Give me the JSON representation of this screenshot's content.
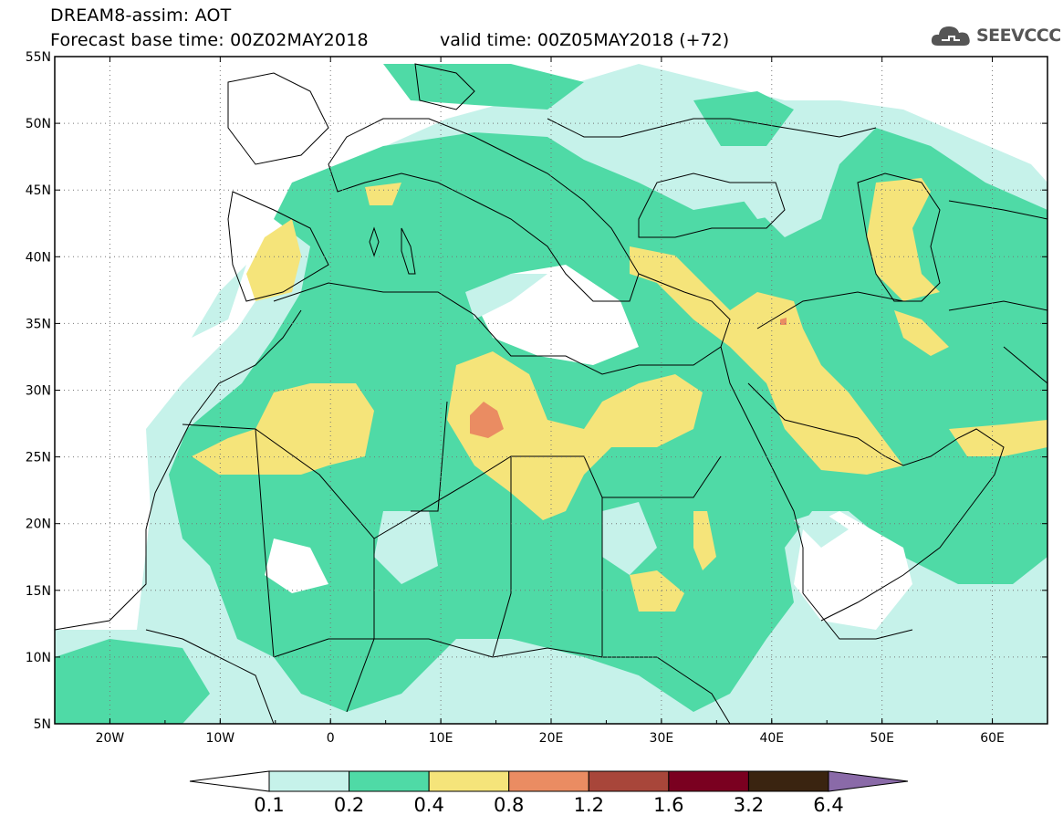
{
  "header": {
    "model_line": "DREAM8-assim: AOT",
    "base_time": "Forecast base time: 00Z02MAY2018",
    "valid_time": "valid time: 00Z05MAY2018 (+72)"
  },
  "logo": {
    "text": "SEEVCCC",
    "icon": "cloud-icon"
  },
  "map": {
    "lon_range": [
      -25,
      65
    ],
    "lat_range": [
      5,
      55
    ],
    "lat_labels": [
      "55N",
      "50N",
      "45N",
      "40N",
      "35N",
      "30N",
      "25N",
      "20N",
      "15N",
      "10N",
      "5N"
    ],
    "lon_labels": [
      "20W",
      "10W",
      "0",
      "10E",
      "20E",
      "30E",
      "40E",
      "50E",
      "60E"
    ],
    "gridlines": "dotted"
  },
  "colorbar": {
    "labels": [
      "0.1",
      "0.2",
      "0.4",
      "0.8",
      "1.2",
      "1.6",
      "3.2",
      "6.4"
    ],
    "colors": [
      "#ffffff",
      "#c6f2ea",
      "#4fdaa6",
      "#f5e47a",
      "#ea8c62",
      "#a8463a",
      "#7a0020",
      "#3a2410",
      "#8a6aa8"
    ]
  }
}
